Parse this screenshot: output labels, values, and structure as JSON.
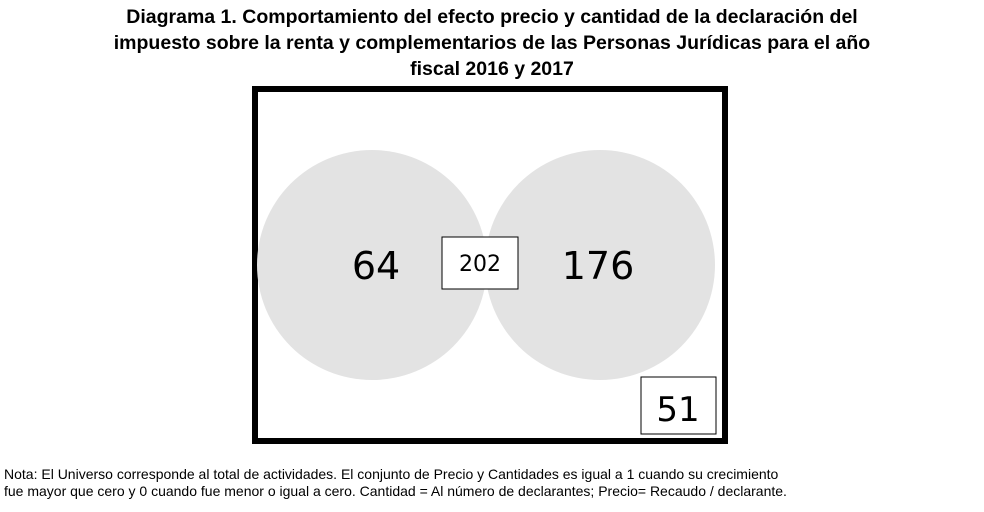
{
  "title": {
    "line1": "Diagrama 1. Comportamiento del efecto precio y cantidad de la declaración del",
    "line2": "impuesto sobre la renta y complementarios de las Personas Jurídicas para el año",
    "line3": "fiscal 2016 y 2017"
  },
  "venn": {
    "left_only": "64",
    "intersection": "202",
    "right_only": "176",
    "outside": "51"
  },
  "colors": {
    "circle_fill": "#e3e3e3",
    "intersection_fill": "#c9c9c9",
    "frame": "#000000",
    "label_box": "#ffffff"
  },
  "note": {
    "line1": "Nota: El Universo corresponde al total de actividades. El conjunto de Precio y Cantidades es igual a 1 cuando su crecimiento",
    "line2": "fue mayor que cero y 0 cuando fue menor o igual a cero. Cantidad = Al número de declarantes; Precio= Recaudo / declarante."
  }
}
